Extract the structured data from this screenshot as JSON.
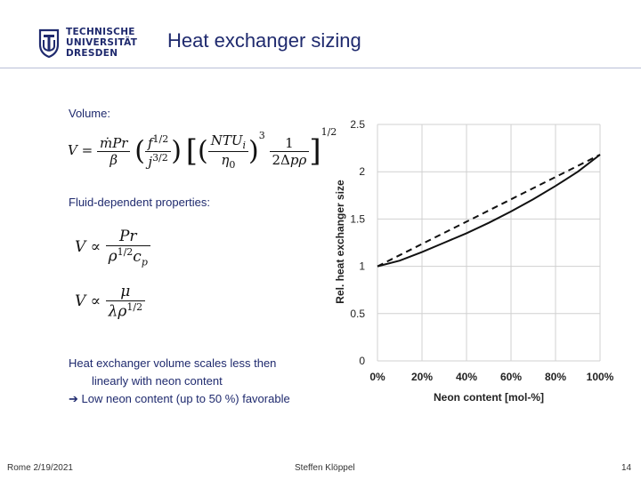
{
  "header": {
    "logo_lines": [
      "TECHNISCHE",
      "UNIVERSITÄT",
      "DRESDEN"
    ],
    "title": "Heat exchanger sizing"
  },
  "content": {
    "volume_label": "Volume:",
    "fluid_label": "Fluid-dependent properties:",
    "conclusion_line1": "Heat exchanger volume scales less then",
    "conclusion_line2": "linearly with neon content",
    "conclusion_arrow": "➔",
    "conclusion_line3": "Low neon content (up to 50 %) favorable"
  },
  "footer": {
    "left": "Rome 2/19/2021",
    "center": "Steffen Klöppel",
    "page": "14"
  },
  "chart_data": {
    "type": "line",
    "xlabel": "Neon content [mol-%]",
    "ylabel": "Rel. heat exchanger size",
    "xlim": [
      0,
      100
    ],
    "ylim": [
      0,
      2.5
    ],
    "x_ticks": [
      "0%",
      "20%",
      "40%",
      "60%",
      "80%",
      "100%"
    ],
    "x_tick_values": [
      0,
      20,
      40,
      60,
      80,
      100
    ],
    "y_ticks": [
      "0",
      "0.5",
      "1",
      "1.5",
      "2",
      "2.5"
    ],
    "y_tick_values": [
      0,
      0.5,
      1,
      1.5,
      2,
      2.5
    ],
    "grid": true,
    "series": [
      {
        "style": "solid",
        "x": [
          0,
          10,
          20,
          30,
          40,
          50,
          60,
          70,
          80,
          90,
          100
        ],
        "y": [
          1.0,
          1.06,
          1.15,
          1.25,
          1.35,
          1.46,
          1.58,
          1.71,
          1.85,
          2.0,
          2.18
        ]
      },
      {
        "style": "dashed",
        "x": [
          0,
          100
        ],
        "y": [
          1.0,
          2.18
        ]
      }
    ]
  }
}
